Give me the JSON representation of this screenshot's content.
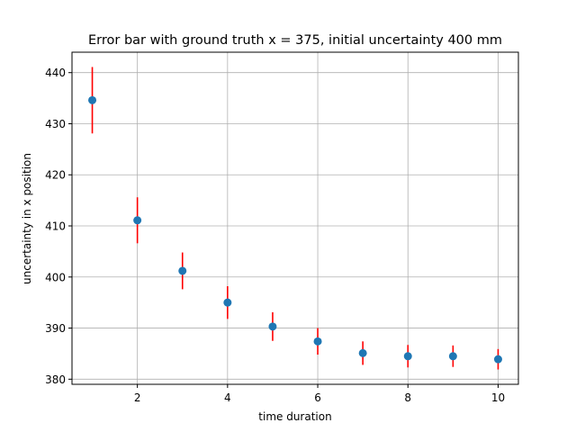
{
  "chart_data": {
    "type": "scatter",
    "title": "Error bar with ground truth x = 375, initial uncertainty 400 mm",
    "xlabel": "time duration",
    "ylabel": "uncertainty in x position",
    "xlim": [
      0.55,
      10.45
    ],
    "ylim": [
      379,
      444
    ],
    "x_ticks": [
      2,
      4,
      6,
      8,
      10
    ],
    "y_ticks": [
      380,
      390,
      400,
      410,
      420,
      430,
      440
    ],
    "grid": true,
    "points": [
      {
        "x": 1,
        "y": 434.6,
        "err": 6.5
      },
      {
        "x": 2,
        "y": 411.1,
        "err": 4.5
      },
      {
        "x": 3,
        "y": 401.2,
        "err": 3.6
      },
      {
        "x": 4,
        "y": 395.0,
        "err": 3.2
      },
      {
        "x": 5,
        "y": 390.3,
        "err": 2.8
      },
      {
        "x": 6,
        "y": 387.4,
        "err": 2.6
      },
      {
        "x": 7,
        "y": 385.1,
        "err": 2.3
      },
      {
        "x": 8,
        "y": 384.5,
        "err": 2.2
      },
      {
        "x": 9,
        "y": 384.5,
        "err": 2.1
      },
      {
        "x": 10,
        "y": 383.9,
        "err": 2.0
      }
    ],
    "colors": {
      "marker": "#1f77b4",
      "errorbar": "#ff0000",
      "grid": "#b0b0b0",
      "axes": "#000000"
    }
  }
}
